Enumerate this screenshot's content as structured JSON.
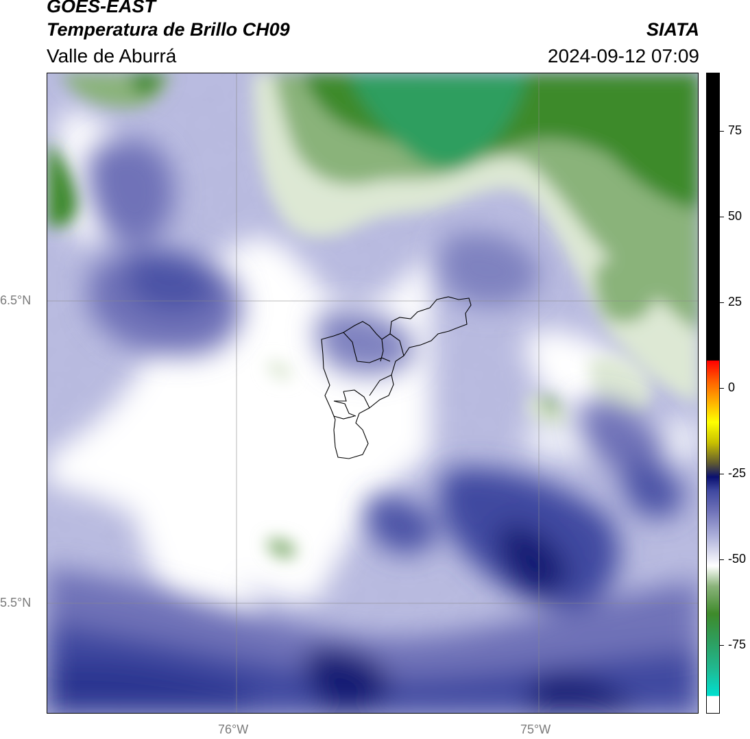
{
  "header": {
    "satellite": "GOES-EAST",
    "product": "Temperatura de Brillo CH09",
    "region": "Valle de Aburrá",
    "agency": "SIATA",
    "timestamp": "2024-09-12 07:09"
  },
  "map": {
    "lat_labels": [
      "6.5°N",
      "5.5°N"
    ],
    "lon_labels": [
      "76°W",
      "75°W"
    ],
    "gridlines": true,
    "overlay": "municipality-boundaries",
    "colors": {
      "deep_cold": "#131f73",
      "cold": "#3f48a0",
      "mid": "#6f72b8",
      "light": "#b3b6dd",
      "pale": "#e3e4f2",
      "white": "#ffffff",
      "pale_green": "#dde8d4",
      "green": "#8ab37a",
      "dark_green": "#3e8a2a",
      "teal_green": "#2e9e5e"
    }
  },
  "colorbar": {
    "ticks": [
      "75",
      "50",
      "25",
      "0",
      "-25",
      "-50",
      "-75"
    ],
    "tick_values": [
      75,
      50,
      25,
      0,
      -25,
      -50,
      -75
    ],
    "range": [
      -95,
      92
    ],
    "stops": [
      {
        "v": -95,
        "c": "#ffffff"
      },
      {
        "v": -90.1,
        "c": "#ffffff"
      },
      {
        "v": -90,
        "c": "#00e0d0"
      },
      {
        "v": -82,
        "c": "#20b890"
      },
      {
        "v": -74,
        "c": "#2e9e5e"
      },
      {
        "v": -66,
        "c": "#3e8a2a"
      },
      {
        "v": -58,
        "c": "#8ab37a"
      },
      {
        "v": -52,
        "c": "#ffffff"
      },
      {
        "v": -44,
        "c": "#b3b6dd"
      },
      {
        "v": -36,
        "c": "#6f72b8"
      },
      {
        "v": -30,
        "c": "#3f48a0"
      },
      {
        "v": -26,
        "c": "#0a1070"
      },
      {
        "v": -22,
        "c": "#605a30"
      },
      {
        "v": -16,
        "c": "#c8c000"
      },
      {
        "v": -10,
        "c": "#ffff00"
      },
      {
        "v": -4,
        "c": "#ffb000"
      },
      {
        "v": 2,
        "c": "#ff6000"
      },
      {
        "v": 8,
        "c": "#ff0000"
      },
      {
        "v": 8.1,
        "c": "#000000"
      },
      {
        "v": 92,
        "c": "#000000"
      }
    ]
  }
}
